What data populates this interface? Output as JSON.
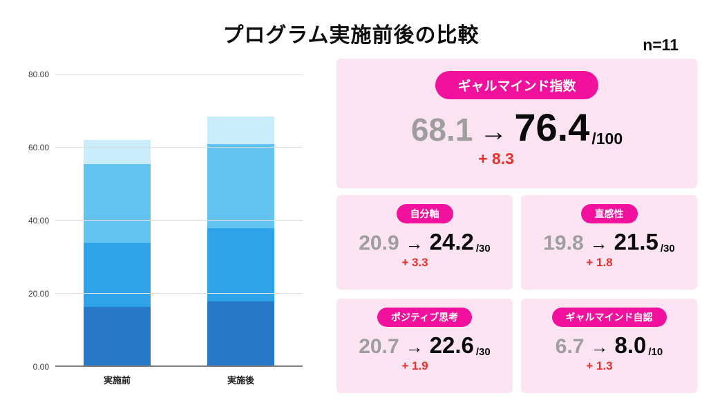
{
  "header": {
    "title": "プログラム実施前後の比較",
    "sample_size": "n=11"
  },
  "labels": {
    "arrow": "→"
  },
  "chart_data": {
    "type": "bar",
    "stacked": true,
    "title": "",
    "xlabel": "",
    "ylabel": "",
    "categories": [
      "実施前",
      "実施後"
    ],
    "series": [
      {
        "name": "layer-1",
        "values": [
          16.5,
          18.0
        ],
        "color": "#2878c8"
      },
      {
        "name": "layer-2",
        "values": [
          17.5,
          20.0
        ],
        "color": "#2ea3e9"
      },
      {
        "name": "layer-3",
        "values": [
          21.5,
          23.0
        ],
        "color": "#62c2f0"
      },
      {
        "name": "layer-4",
        "values": [
          6.5,
          7.5
        ],
        "color": "#c9ecfb"
      }
    ],
    "totals": [
      62.0,
      68.5
    ],
    "ylim": [
      0,
      80
    ],
    "yticks": [
      "80.00",
      "60.00",
      "40.00",
      "20.00",
      "0.00"
    ],
    "grid": true,
    "legend": "none"
  },
  "summary": {
    "badge": "ギャルマインド指数",
    "before": "68.1",
    "after": "76.4",
    "denominator": "/100",
    "delta": "+ 8.3"
  },
  "metrics": [
    {
      "badge": "自分軸",
      "before": "20.9",
      "after": "24.2",
      "denominator": "/30",
      "delta": "+ 3.3"
    },
    {
      "badge": "直感性",
      "before": "19.8",
      "after": "21.5",
      "denominator": "/30",
      "delta": "+ 1.8"
    },
    {
      "badge": "ポジティブ思考",
      "before": "20.7",
      "after": "22.6",
      "denominator": "/30",
      "delta": "+ 1.9"
    },
    {
      "badge": "ギャルマインド自認",
      "before": "6.7",
      "after": "8.0",
      "denominator": "/10",
      "delta": "+ 1.3"
    }
  ],
  "colors": {
    "panel_pink": "#fbe3f1",
    "badge_pink": "#f2119d",
    "delta_red": "#e8302a",
    "muted_gray": "#9e9e9e",
    "grid_gray": "#dcdcdc",
    "axis_gray": "#7c7c7c"
  }
}
